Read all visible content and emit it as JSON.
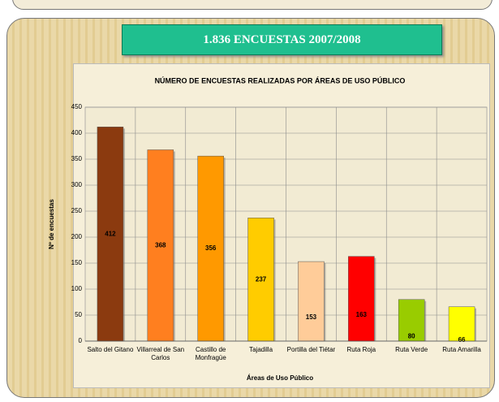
{
  "banner": "1.836 ENCUESTAS 2007/2008",
  "chart_data": {
    "type": "bar",
    "title": "NÚMERO DE ENCUESTAS REALIZADAS POR ÁREAS DE USO PÚBLICO",
    "x_label": "Áreas de Uso Público",
    "y_label": "Nº de encuestas",
    "categories": [
      "Salto del Gitano",
      "Villarreal de San Carlos",
      "Castillo de Monfragüe",
      "Tajadilla",
      "Portilla del Tiétar",
      "Ruta Roja",
      "Ruta Verde",
      "Ruta Amarilla"
    ],
    "values": [
      412,
      368,
      356,
      237,
      153,
      163,
      80,
      66
    ],
    "colors": [
      "#8b3a0f",
      "#ff7f1f",
      "#ff9900",
      "#ffcc00",
      "#ffcc99",
      "#ff0000",
      "#99cc00",
      "#ffff00"
    ],
    "ylim": [
      0,
      450
    ],
    "yticks": [
      0,
      50,
      100,
      150,
      200,
      250,
      300,
      350,
      400,
      450
    ],
    "grid": true
  }
}
